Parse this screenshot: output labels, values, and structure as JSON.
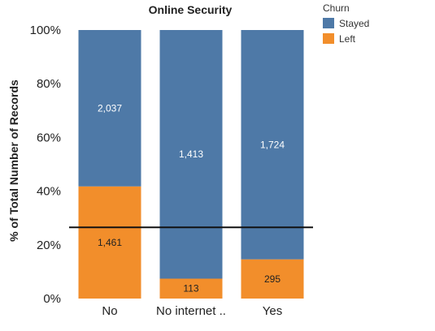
{
  "chart_data": {
    "type": "bar",
    "stacked": "percent",
    "title": "Online Security",
    "xlabel": "",
    "ylabel": "% of Total Number of Records",
    "categories": [
      "No",
      "No internet ..",
      "Yes"
    ],
    "series": [
      {
        "name": "Stayed",
        "values": [
          2037,
          1413,
          1724
        ],
        "color": "#4e79a7",
        "label_color": "#ffffff"
      },
      {
        "name": "Left",
        "values": [
          1461,
          113,
          295
        ],
        "color": "#f28e2b",
        "label_color": "#222222"
      }
    ],
    "data_labels": {
      "Stayed": [
        "2,037",
        "1,413",
        "1,724"
      ],
      "Left": [
        "1,461",
        "113",
        "295"
      ]
    },
    "y_ticks": [
      "0%",
      "20%",
      "40%",
      "60%",
      "80%",
      "100%"
    ],
    "ylim": [
      0,
      100
    ],
    "reference_line": 26.5,
    "legend": {
      "title": "Churn",
      "position": "top-right"
    },
    "grid": false
  }
}
